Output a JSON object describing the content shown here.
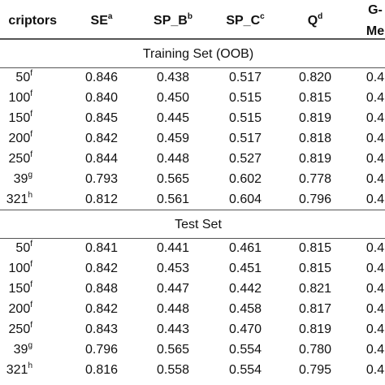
{
  "table": {
    "header": [
      {
        "text": "criptors"
      },
      {
        "text": "SE",
        "sup": "a"
      },
      {
        "text": "SP_B",
        "sup": "b"
      },
      {
        "text": "SP_C",
        "sup": "c"
      },
      {
        "text": "Q",
        "sup": "d"
      },
      {
        "text": "G-",
        "text2": "Me"
      }
    ],
    "sections": [
      {
        "title": "Training Set (OOB)",
        "rows": [
          {
            "label": "50",
            "sup": "f",
            "cells": [
              "0.846",
              "0.438",
              "0.517",
              "0.820",
              "0.4"
            ]
          },
          {
            "label": "100",
            "sup": "f",
            "cells": [
              "0.840",
              "0.450",
              "0.515",
              "0.815",
              "0.4"
            ]
          },
          {
            "label": "150",
            "sup": "f",
            "cells": [
              "0.845",
              "0.445",
              "0.515",
              "0.819",
              "0.4"
            ]
          },
          {
            "label": "200",
            "sup": "f",
            "cells": [
              "0.842",
              "0.459",
              "0.517",
              "0.818",
              "0.4"
            ]
          },
          {
            "label": "250",
            "sup": "f",
            "cells": [
              "0.844",
              "0.448",
              "0.527",
              "0.819",
              "0.4"
            ]
          },
          {
            "label": "39",
            "sup": "g",
            "cells": [
              "0.793",
              "0.565",
              "0.602",
              "0.778",
              "0.4"
            ]
          },
          {
            "label": "321",
            "sup": "h",
            "cells": [
              "0.812",
              "0.561",
              "0.604",
              "0.796",
              "0.4"
            ]
          }
        ]
      },
      {
        "title": "Test Set",
        "rows": [
          {
            "label": "50",
            "sup": "f",
            "cells": [
              "0.841",
              "0.441",
              "0.461",
              "0.815",
              "0.4"
            ]
          },
          {
            "label": "100",
            "sup": "f",
            "cells": [
              "0.842",
              "0.453",
              "0.451",
              "0.815",
              "0.4"
            ]
          },
          {
            "label": "150",
            "sup": "f",
            "cells": [
              "0.848",
              "0.447",
              "0.442",
              "0.821",
              "0.4"
            ]
          },
          {
            "label": "200",
            "sup": "f",
            "cells": [
              "0.842",
              "0.448",
              "0.458",
              "0.817",
              "0.4"
            ]
          },
          {
            "label": "250",
            "sup": "f",
            "cells": [
              "0.843",
              "0.443",
              "0.470",
              "0.819",
              "0.4"
            ]
          },
          {
            "label": "39",
            "sup": "g",
            "cells": [
              "0.796",
              "0.565",
              "0.554",
              "0.780",
              "0.4"
            ]
          },
          {
            "label": "321",
            "sup": "h",
            "cells": [
              "0.816",
              "0.558",
              "0.554",
              "0.795",
              "0.4"
            ]
          }
        ]
      }
    ]
  }
}
